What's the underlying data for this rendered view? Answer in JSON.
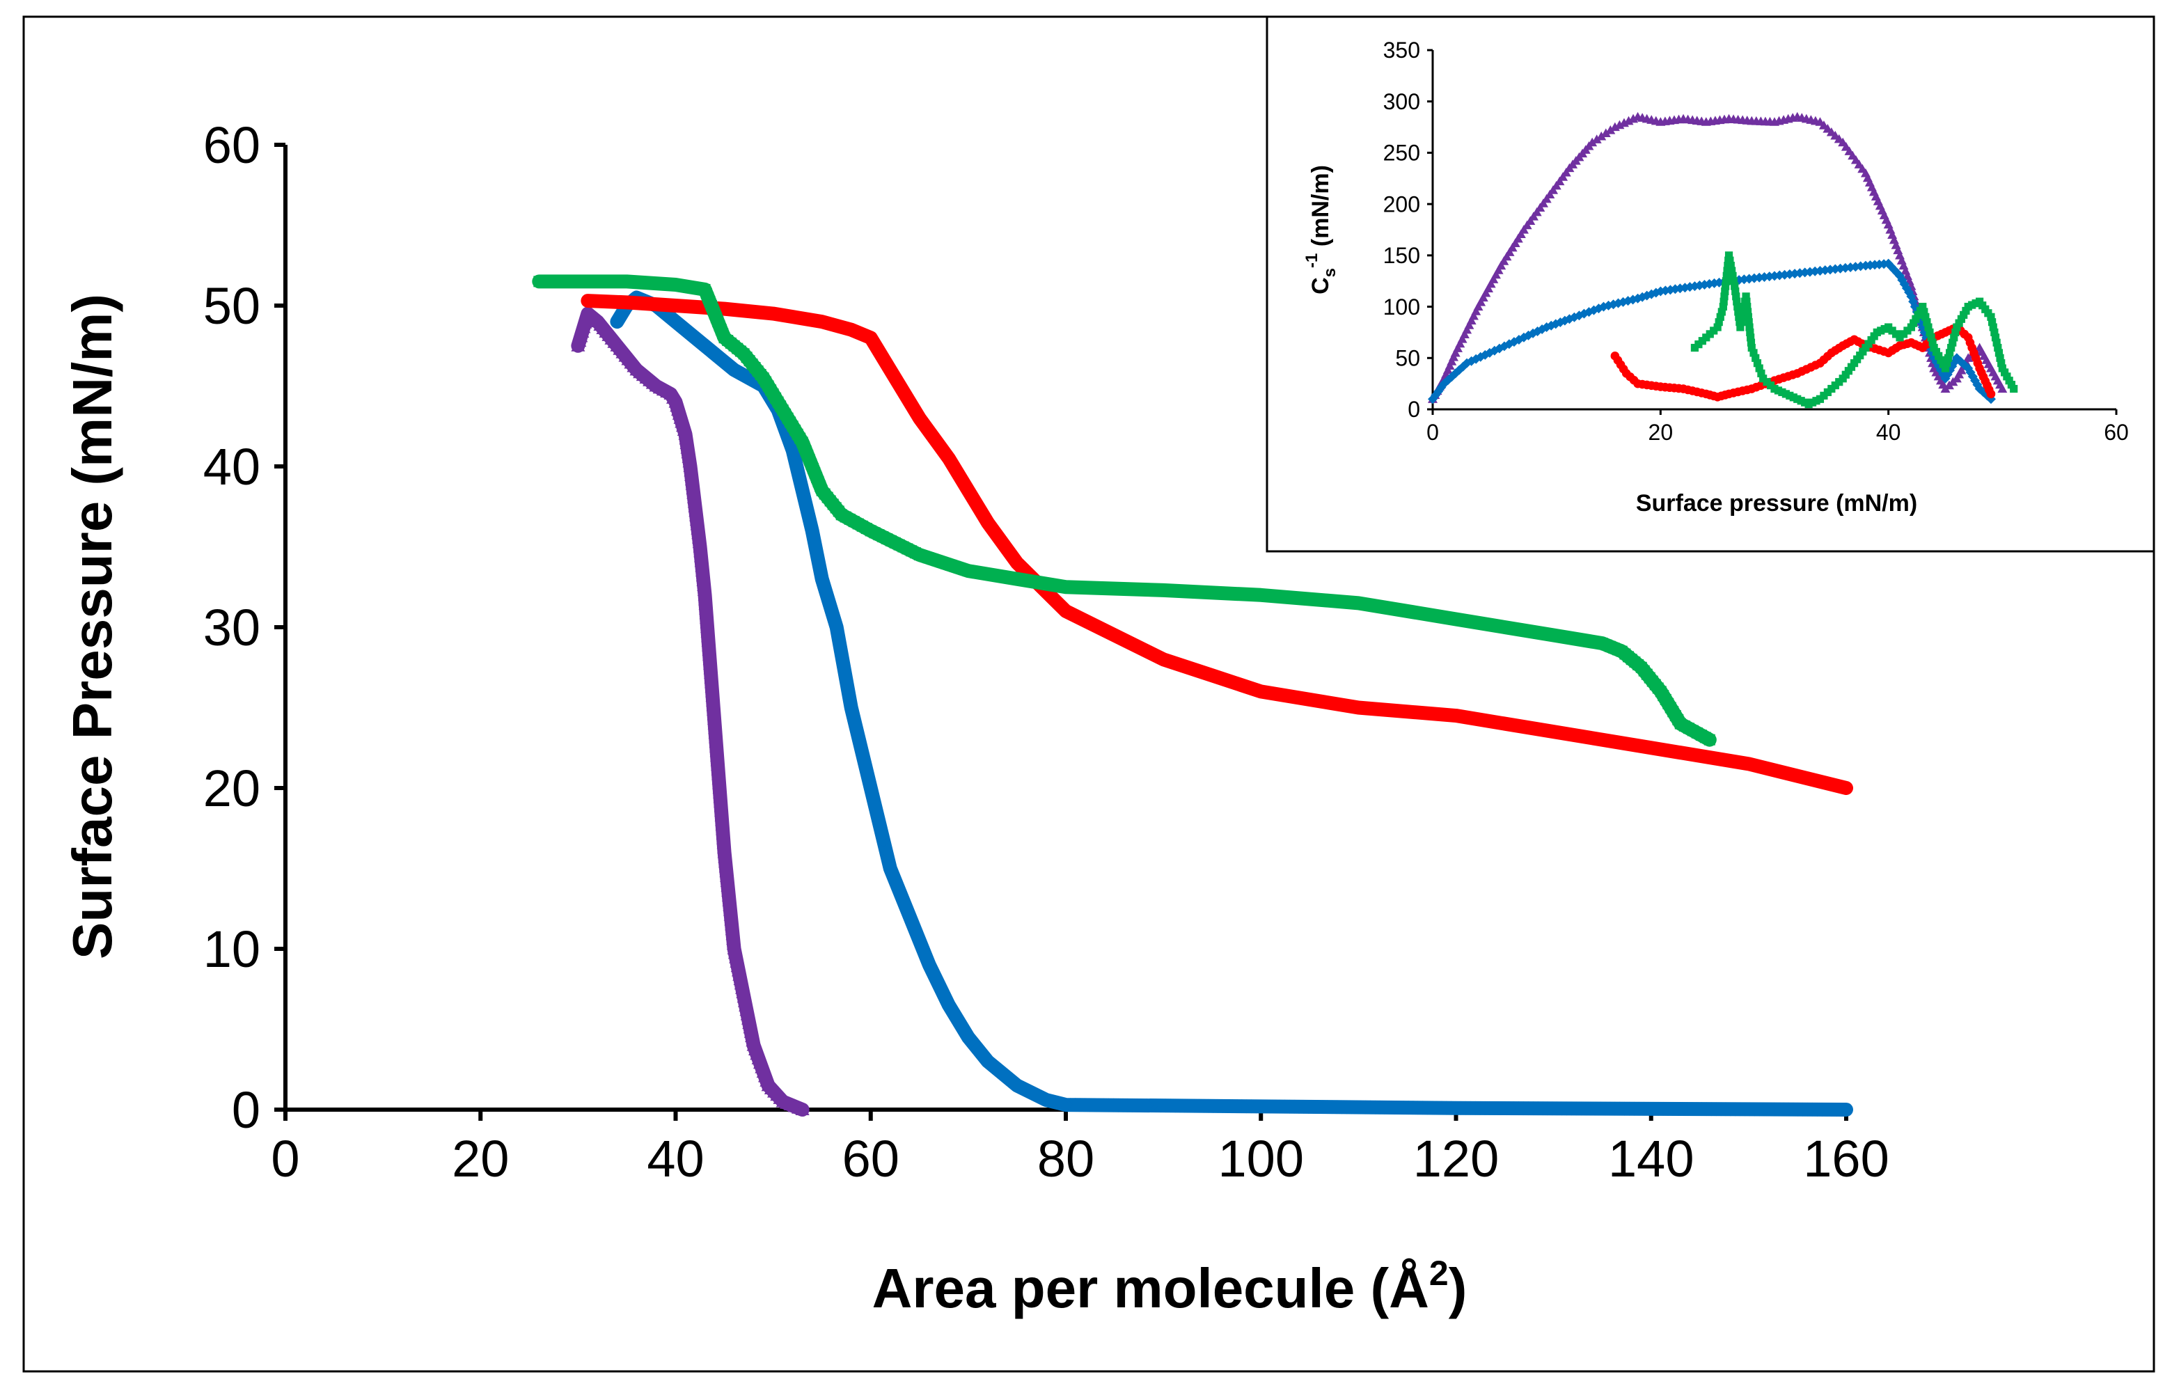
{
  "chart_data": [
    {
      "type": "line",
      "xlabel": "Area per molecule (Å",
      "xlabel_sup": "2",
      "xlabel_end": ")",
      "ylabel": "Surface Pressure (mN/m)",
      "xlim": [
        0,
        160
      ],
      "ylim": [
        0,
        60
      ],
      "xticks": [
        0,
        20,
        40,
        60,
        80,
        100,
        120,
        140,
        160
      ],
      "yticks": [
        0,
        10,
        20,
        30,
        40,
        50,
        60
      ],
      "series": [
        {
          "name": "purple",
          "color": "#7030A0",
          "marker": "triangle",
          "x": [
            53,
            51,
            49.5,
            48,
            47,
            46,
            45.5,
            45,
            44.5,
            44,
            43.5,
            43,
            42.5,
            42,
            41.5,
            41,
            40.5,
            40,
            39.5,
            38,
            36,
            34,
            32,
            31,
            30
          ],
          "y": [
            0,
            0.5,
            1.5,
            4,
            7,
            10,
            13,
            16,
            20,
            24,
            28,
            32,
            35,
            37.5,
            40,
            42,
            43,
            44,
            44.5,
            45,
            46,
            47.5,
            49,
            49.5,
            47.5
          ]
        },
        {
          "name": "blue",
          "color": "#0070C0",
          "marker": "diamond",
          "x": [
            160,
            120,
            100,
            80,
            78,
            75,
            72,
            70,
            68,
            66,
            64,
            62,
            60,
            58,
            56.5,
            55,
            54,
            53,
            52,
            50.5,
            49,
            46,
            43,
            40,
            38,
            36,
            35,
            34
          ],
          "y": [
            0,
            0.1,
            0.2,
            0.3,
            0.6,
            1.5,
            3,
            4.5,
            6.5,
            9,
            12,
            15,
            20,
            25,
            30,
            33,
            36,
            38.5,
            41,
            43.5,
            45,
            46,
            47.5,
            49,
            50,
            50.5,
            50,
            49
          ]
        },
        {
          "name": "red",
          "color": "#FF0000",
          "marker": "circle",
          "x": [
            160,
            150,
            140,
            130,
            120,
            110,
            100,
            95,
            90,
            85,
            80,
            75,
            72,
            70,
            68,
            65,
            62,
            60,
            58,
            55,
            50,
            45,
            40,
            35,
            31
          ],
          "y": [
            20,
            21.5,
            22.5,
            23.5,
            24.5,
            25,
            26,
            27,
            28,
            29.5,
            31,
            34,
            36.5,
            38.5,
            40.5,
            43,
            46,
            48,
            48.5,
            49,
            49.5,
            49.8,
            50,
            50.2,
            50.3
          ]
        },
        {
          "name": "green",
          "color": "#00B050",
          "marker": "square",
          "x": [
            146,
            143,
            141,
            139,
            137,
            135,
            130,
            120,
            110,
            100,
            90,
            80,
            75,
            70,
            65,
            60,
            57,
            55,
            53,
            51,
            49,
            47,
            45,
            44,
            43,
            40,
            35,
            30,
            26
          ],
          "y": [
            23,
            24,
            26,
            27.5,
            28.5,
            29,
            29.5,
            30.5,
            31.5,
            32,
            32.3,
            32.5,
            33,
            33.5,
            34.5,
            36,
            37,
            38.5,
            41.5,
            43.5,
            45.5,
            47,
            48,
            49.5,
            51,
            51.3,
            51.5,
            51.5,
            51.5
          ]
        }
      ]
    },
    {
      "type": "scatter",
      "xlabel": "Surface pressure (mN/m)",
      "ylabel": "C",
      "ylabel_sub": "s",
      "ylabel_sup": "-1",
      "ylabel_end": " (mN/m)",
      "xlim": [
        0,
        60
      ],
      "ylim": [
        0,
        350
      ],
      "xticks": [
        0,
        20,
        40,
        60
      ],
      "yticks": [
        0,
        50,
        100,
        150,
        200,
        250,
        300,
        350
      ],
      "series": [
        {
          "name": "purple",
          "color": "#7030A0",
          "marker": "triangle",
          "x": [
            0,
            1,
            2,
            4,
            6,
            8,
            10,
            12,
            14,
            16,
            18,
            20,
            22,
            24,
            26,
            28,
            30,
            32,
            34,
            36,
            38,
            40,
            42,
            43,
            44,
            45,
            46,
            47,
            48,
            49,
            50
          ],
          "y": [
            10,
            30,
            55,
            100,
            140,
            175,
            205,
            235,
            260,
            275,
            285,
            280,
            283,
            280,
            283,
            281,
            280,
            285,
            280,
            260,
            230,
            180,
            120,
            80,
            40,
            20,
            30,
            50,
            60,
            40,
            20
          ]
        },
        {
          "name": "blue",
          "color": "#0070C0",
          "marker": "diamond",
          "x": [
            0,
            1,
            2,
            3,
            5,
            8,
            10,
            12,
            15,
            18,
            20,
            23,
            26,
            30,
            34,
            38,
            40,
            41,
            42,
            43,
            44,
            45,
            46,
            47,
            48,
            49
          ],
          "y": [
            10,
            25,
            35,
            45,
            55,
            70,
            80,
            88,
            100,
            108,
            115,
            120,
            125,
            130,
            135,
            140,
            142,
            130,
            110,
            80,
            50,
            30,
            50,
            40,
            20,
            10
          ]
        },
        {
          "name": "red",
          "color": "#FF0000",
          "marker": "circle",
          "x": [
            16,
            17,
            18,
            20,
            22,
            24,
            25,
            26,
            28,
            30,
            32,
            34,
            35,
            36,
            37,
            38,
            40,
            41,
            42,
            43,
            44,
            45,
            46,
            47,
            48,
            49
          ],
          "y": [
            52,
            35,
            25,
            22,
            20,
            15,
            12,
            15,
            20,
            28,
            35,
            45,
            55,
            62,
            68,
            62,
            55,
            62,
            65,
            60,
            70,
            75,
            80,
            70,
            40,
            15
          ]
        },
        {
          "name": "green",
          "color": "#00B050",
          "marker": "square",
          "x": [
            23,
            24,
            25,
            25.5,
            26,
            26.5,
            27,
            27.5,
            28,
            29,
            30,
            31,
            32,
            33,
            34,
            35,
            36,
            37,
            38,
            39,
            40,
            41,
            42,
            43,
            44,
            45,
            46,
            47,
            48,
            49,
            50,
            51
          ],
          "y": [
            60,
            70,
            80,
            100,
            150,
            120,
            80,
            110,
            60,
            30,
            20,
            15,
            10,
            5,
            10,
            20,
            30,
            45,
            60,
            75,
            80,
            70,
            80,
            100,
            60,
            40,
            80,
            100,
            105,
            90,
            40,
            20
          ]
        }
      ]
    }
  ]
}
